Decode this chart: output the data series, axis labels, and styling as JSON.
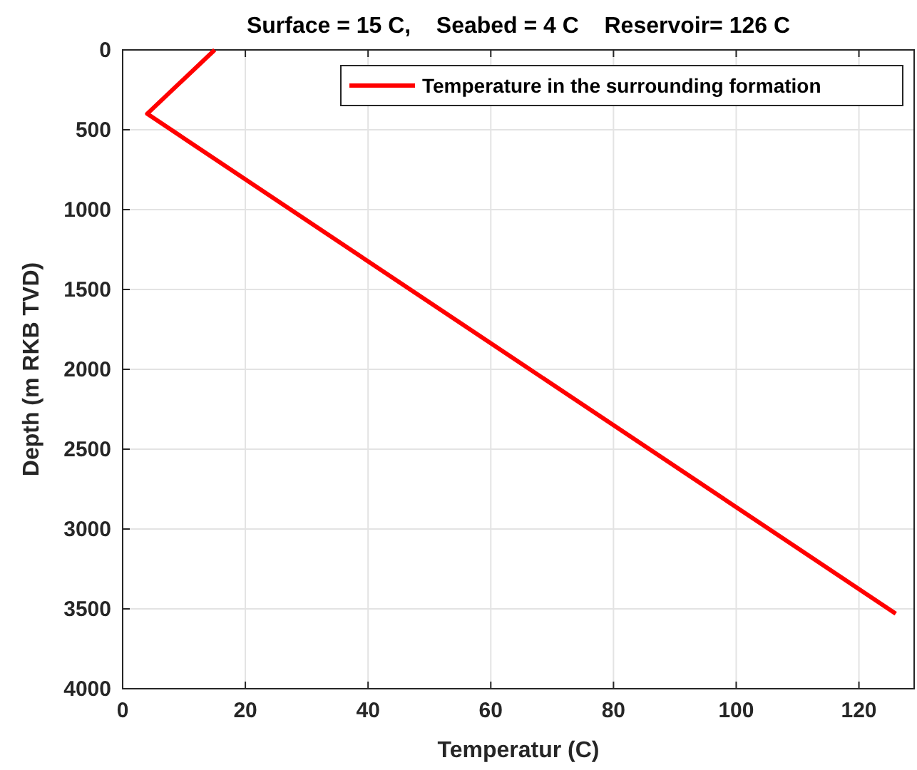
{
  "chart_data": {
    "type": "line",
    "title": "Surface = 15 C,    Seabed = 4 C    Reservoir= 126 C",
    "xlabel": "Temperatur (C)",
    "ylabel": "Depth (m RKB TVD)",
    "x": [
      15,
      4,
      126
    ],
    "series": [
      {
        "name": "Temperature in the surrounding formation",
        "color": "#ff0000",
        "values": [
          0,
          400,
          3530
        ]
      }
    ],
    "xlim": [
      0,
      129
    ],
    "xticks": [
      0,
      20,
      40,
      60,
      80,
      100,
      120
    ],
    "ylim": [
      4000,
      0
    ],
    "yticks": [
      0,
      500,
      1000,
      1500,
      2000,
      2500,
      3000,
      3500,
      4000
    ],
    "grid": true,
    "legend": "top right",
    "marker": "none",
    "line_style": "solid"
  }
}
